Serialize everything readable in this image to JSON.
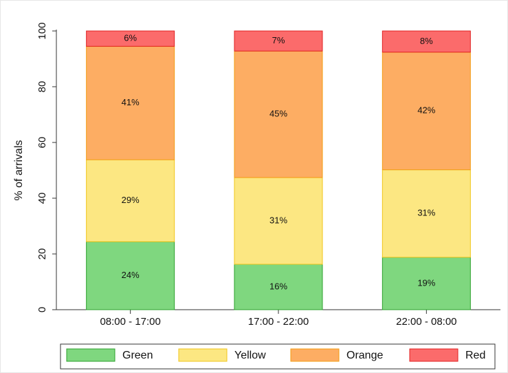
{
  "chart_data": {
    "type": "stacked_bar",
    "y_label": "% of arrivals",
    "categories": [
      "08:00 - 17:00",
      "17:00 - 22:00",
      "22:00 - 08:00"
    ],
    "series": [
      {
        "name": "Green",
        "color": "#7fd77f",
        "edge": "#2ca02c",
        "values": [
          24.4,
          16.3,
          18.8
        ],
        "value_labels": [
          "24%",
          "16%",
          "19%"
        ]
      },
      {
        "name": "Yellow",
        "color": "#fce782",
        "edge": "#f0c419",
        "values": [
          29.4,
          31.1,
          31.4
        ],
        "value_labels": [
          "29%",
          "31%",
          "31%"
        ]
      },
      {
        "name": "Orange",
        "color": "#fdad63",
        "edge": "#f39c12",
        "values": [
          40.7,
          45.4,
          42.2
        ],
        "value_labels": [
          "41%",
          "45%",
          "42%"
        ]
      },
      {
        "name": "Red",
        "color": "#fb6b6b",
        "edge": "#e02020",
        "values": [
          5.5,
          7.2,
          7.6
        ],
        "value_labels": [
          "6%",
          "7%",
          "8%"
        ]
      }
    ],
    "ylim": [
      0,
      100
    ],
    "yticks": [
      0,
      20,
      40,
      60,
      80,
      100
    ]
  }
}
